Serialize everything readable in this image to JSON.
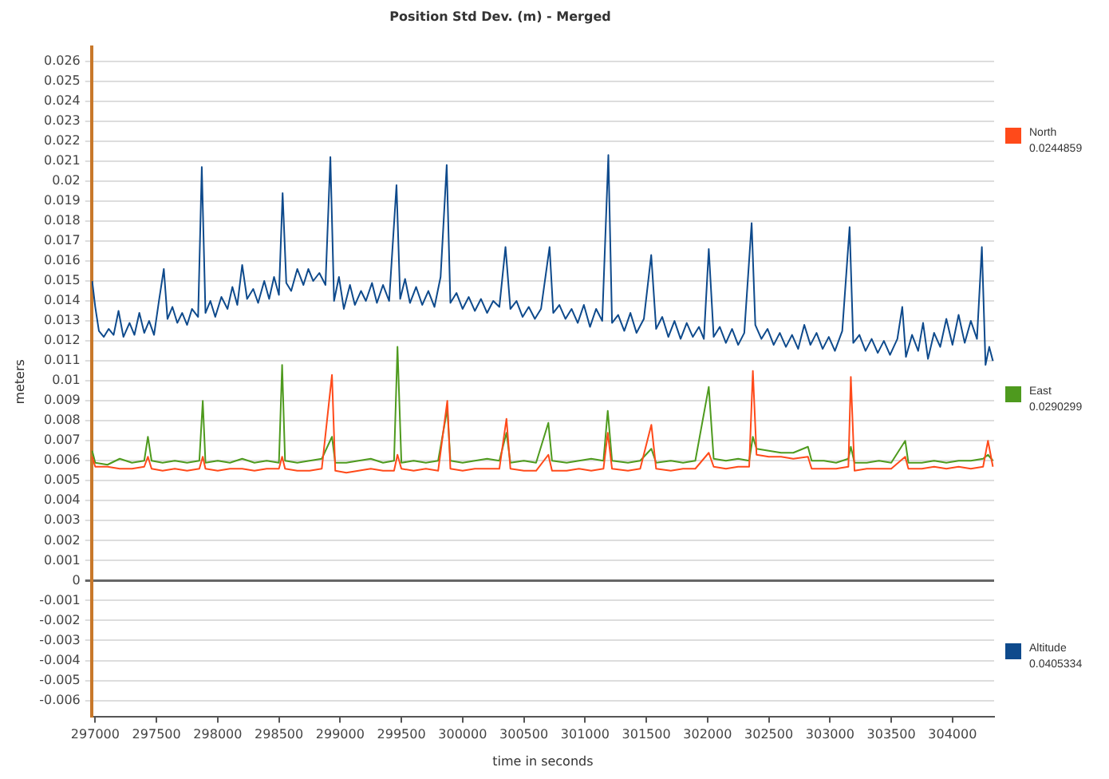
{
  "chart_data": {
    "type": "line",
    "title": "Position Std Dev. (m) - Merged",
    "xlabel": "time in seconds",
    "ylabel": "meters",
    "xlim": [
      296970,
      304340
    ],
    "xticks": [
      297000,
      297500,
      298000,
      298500,
      299000,
      299500,
      300000,
      300500,
      301000,
      301500,
      302000,
      302500,
      303000,
      303500,
      304000
    ],
    "ylim": [
      -0.0068,
      0.0267
    ],
    "yticks": [
      -0.006,
      -0.005,
      -0.004,
      -0.003,
      -0.002,
      -0.001,
      0,
      0.001,
      0.002,
      0.003,
      0.004,
      0.005,
      0.006,
      0.007,
      0.008,
      0.009,
      0.01,
      0.011,
      0.012,
      0.013,
      0.014,
      0.015,
      0.016,
      0.017,
      0.018,
      0.019,
      0.02,
      0.021,
      0.022,
      0.023,
      0.024,
      0.025,
      0.026
    ],
    "grid": "y",
    "legend": "right",
    "marker": "none",
    "line_style": "solid",
    "annotations": [
      "0.0244859",
      "0.0290299",
      "0.0405334"
    ],
    "series": [
      {
        "name": "North",
        "color": "#ff4a1a",
        "x": [
          296975,
          297000,
          297100,
          297200,
          297300,
          297400,
          297430,
          297460,
          297550,
          297650,
          297750,
          297850,
          297878,
          297900,
          298000,
          298100,
          298200,
          298300,
          298400,
          298500,
          298526,
          298550,
          298650,
          298750,
          298850,
          298933,
          298960,
          299050,
          299150,
          299250,
          299350,
          299440,
          299468,
          299500,
          299600,
          299700,
          299800,
          299875,
          299900,
          300000,
          300100,
          300200,
          300300,
          300358,
          300390,
          300500,
          300600,
          300700,
          300730,
          300850,
          300950,
          301050,
          301150,
          301185,
          301220,
          301350,
          301450,
          301541,
          301580,
          301700,
          301800,
          301900,
          302010,
          302050,
          302150,
          302250,
          302340,
          302370,
          302400,
          302500,
          302600,
          302700,
          302820,
          302850,
          302950,
          303050,
          303150,
          303170,
          303200,
          303300,
          303400,
          303500,
          303614,
          303640,
          303750,
          303850,
          303950,
          304050,
          304150,
          304250,
          304290,
          304330
        ],
        "values": [
          0.0062,
          0.0057,
          0.0057,
          0.0056,
          0.0056,
          0.0057,
          0.0062,
          0.0056,
          0.0055,
          0.0056,
          0.0055,
          0.0056,
          0.0062,
          0.0056,
          0.0055,
          0.0056,
          0.0056,
          0.0055,
          0.0056,
          0.0056,
          0.0062,
          0.0056,
          0.0055,
          0.0055,
          0.0056,
          0.0103,
          0.0055,
          0.0054,
          0.0055,
          0.0056,
          0.0055,
          0.0055,
          0.0063,
          0.0056,
          0.0055,
          0.0056,
          0.0055,
          0.009,
          0.0056,
          0.0055,
          0.0056,
          0.0056,
          0.0056,
          0.0081,
          0.0056,
          0.0055,
          0.0055,
          0.0063,
          0.0055,
          0.0055,
          0.0056,
          0.0055,
          0.0056,
          0.0074,
          0.0056,
          0.0055,
          0.0056,
          0.0078,
          0.0056,
          0.0055,
          0.0056,
          0.0056,
          0.0064,
          0.0057,
          0.0056,
          0.0057,
          0.0057,
          0.0105,
          0.0063,
          0.0062,
          0.0062,
          0.0061,
          0.0062,
          0.0056,
          0.0056,
          0.0056,
          0.0057,
          0.0102,
          0.0055,
          0.0056,
          0.0056,
          0.0056,
          0.0062,
          0.0056,
          0.0056,
          0.0057,
          0.0056,
          0.0057,
          0.0056,
          0.0057,
          0.007,
          0.0057
        ]
      },
      {
        "name": "East",
        "color": "#4e9a1e",
        "x": [
          296975,
          297000,
          297100,
          297200,
          297300,
          297400,
          297430,
          297460,
          297550,
          297650,
          297750,
          297850,
          297878,
          297900,
          298000,
          298100,
          298200,
          298300,
          298400,
          298500,
          298526,
          298550,
          298650,
          298750,
          298850,
          298933,
          298960,
          299050,
          299150,
          299250,
          299350,
          299440,
          299468,
          299500,
          299600,
          299700,
          299800,
          299875,
          299900,
          300000,
          300100,
          300200,
          300300,
          300358,
          300390,
          300500,
          300600,
          300700,
          300730,
          300850,
          300950,
          301050,
          301150,
          301185,
          301220,
          301350,
          301450,
          301541,
          301580,
          301700,
          301800,
          301900,
          302010,
          302050,
          302150,
          302250,
          302340,
          302370,
          302400,
          302500,
          302600,
          302700,
          302820,
          302850,
          302950,
          303050,
          303150,
          303170,
          303200,
          303300,
          303400,
          303500,
          303614,
          303640,
          303750,
          303850,
          303950,
          304050,
          304150,
          304250,
          304290,
          304330
        ],
        "values": [
          0.0065,
          0.0059,
          0.0058,
          0.0061,
          0.0059,
          0.006,
          0.0072,
          0.006,
          0.0059,
          0.006,
          0.0059,
          0.006,
          0.009,
          0.0059,
          0.006,
          0.0059,
          0.0061,
          0.0059,
          0.006,
          0.0059,
          0.0108,
          0.006,
          0.0059,
          0.006,
          0.0061,
          0.0072,
          0.0059,
          0.0059,
          0.006,
          0.0061,
          0.0059,
          0.006,
          0.0117,
          0.0059,
          0.006,
          0.0059,
          0.006,
          0.0086,
          0.006,
          0.0059,
          0.006,
          0.0061,
          0.006,
          0.0074,
          0.0059,
          0.006,
          0.0059,
          0.0079,
          0.006,
          0.0059,
          0.006,
          0.0061,
          0.006,
          0.0085,
          0.006,
          0.0059,
          0.006,
          0.0066,
          0.0059,
          0.006,
          0.0059,
          0.006,
          0.0097,
          0.0061,
          0.006,
          0.0061,
          0.006,
          0.0072,
          0.0066,
          0.0065,
          0.0064,
          0.0064,
          0.0067,
          0.006,
          0.006,
          0.0059,
          0.0061,
          0.0067,
          0.0059,
          0.0059,
          0.006,
          0.0059,
          0.007,
          0.0059,
          0.0059,
          0.006,
          0.0059,
          0.006,
          0.006,
          0.0061,
          0.0063,
          0.006
        ]
      },
      {
        "name": "Altitude",
        "color": "#0e4a8c",
        "x": [
          296975,
          297000,
          297030,
          297070,
          297110,
          297150,
          297190,
          297230,
          297280,
          297320,
          297360,
          297400,
          297440,
          297480,
          297520,
          297560,
          297590,
          297630,
          297670,
          297710,
          297750,
          297790,
          297840,
          297870,
          297900,
          297940,
          297980,
          298030,
          298080,
          298120,
          298160,
          298200,
          298240,
          298290,
          298330,
          298380,
          298420,
          298460,
          298500,
          298530,
          298560,
          298600,
          298650,
          298700,
          298740,
          298780,
          298830,
          298880,
          298920,
          298950,
          298990,
          299030,
          299080,
          299120,
          299170,
          299210,
          299260,
          299300,
          299350,
          299400,
          299460,
          299490,
          299530,
          299570,
          299620,
          299670,
          299720,
          299770,
          299820,
          299870,
          299900,
          299950,
          300000,
          300050,
          300100,
          300150,
          300200,
          300250,
          300300,
          300350,
          300390,
          300440,
          300490,
          300540,
          300590,
          300640,
          300710,
          300740,
          300790,
          300840,
          300890,
          300940,
          300990,
          301040,
          301090,
          301140,
          301190,
          301220,
          301270,
          301320,
          301370,
          301420,
          301480,
          301540,
          301580,
          301630,
          301680,
          301730,
          301780,
          301830,
          301880,
          301930,
          301970,
          302010,
          302050,
          302100,
          302150,
          302200,
          302250,
          302300,
          302360,
          302390,
          302440,
          302490,
          302540,
          302590,
          302640,
          302690,
          302740,
          302790,
          302840,
          302890,
          302940,
          302990,
          303040,
          303100,
          303160,
          303190,
          303240,
          303290,
          303340,
          303390,
          303440,
          303490,
          303550,
          303590,
          303620,
          303670,
          303720,
          303760,
          303800,
          303850,
          303900,
          303950,
          304000,
          304050,
          304100,
          304150,
          304200,
          304240,
          304270,
          304300,
          304330
        ],
        "values": [
          0.015,
          0.0137,
          0.0125,
          0.0122,
          0.0126,
          0.0123,
          0.0135,
          0.0122,
          0.0129,
          0.0123,
          0.0134,
          0.0124,
          0.013,
          0.0123,
          0.014,
          0.0156,
          0.0131,
          0.0137,
          0.0129,
          0.0134,
          0.0128,
          0.0136,
          0.0132,
          0.0207,
          0.0134,
          0.014,
          0.0132,
          0.0142,
          0.0136,
          0.0147,
          0.0138,
          0.0158,
          0.0141,
          0.0146,
          0.0139,
          0.015,
          0.0141,
          0.0152,
          0.0143,
          0.0194,
          0.0149,
          0.0145,
          0.0156,
          0.0148,
          0.0156,
          0.015,
          0.0154,
          0.0148,
          0.0212,
          0.014,
          0.0152,
          0.0136,
          0.0148,
          0.0138,
          0.0145,
          0.014,
          0.0149,
          0.0139,
          0.0148,
          0.014,
          0.0198,
          0.0141,
          0.0151,
          0.0139,
          0.0147,
          0.0138,
          0.0145,
          0.0137,
          0.0152,
          0.0208,
          0.0139,
          0.0144,
          0.0136,
          0.0142,
          0.0135,
          0.0141,
          0.0134,
          0.014,
          0.0137,
          0.0167,
          0.0136,
          0.014,
          0.0132,
          0.0137,
          0.0131,
          0.0136,
          0.0167,
          0.0134,
          0.0138,
          0.0131,
          0.0136,
          0.0129,
          0.0138,
          0.0127,
          0.0136,
          0.013,
          0.0213,
          0.0129,
          0.0133,
          0.0125,
          0.0134,
          0.0124,
          0.0131,
          0.0163,
          0.0126,
          0.0132,
          0.0122,
          0.013,
          0.0121,
          0.0129,
          0.0122,
          0.0127,
          0.0121,
          0.0166,
          0.0122,
          0.0127,
          0.0119,
          0.0126,
          0.0118,
          0.0124,
          0.0179,
          0.0128,
          0.0121,
          0.0126,
          0.0118,
          0.0124,
          0.0117,
          0.0123,
          0.0116,
          0.0128,
          0.0118,
          0.0124,
          0.0116,
          0.0122,
          0.0115,
          0.0125,
          0.0177,
          0.0119,
          0.0123,
          0.0115,
          0.0121,
          0.0114,
          0.012,
          0.0113,
          0.0121,
          0.0137,
          0.0112,
          0.0123,
          0.0115,
          0.0129,
          0.0111,
          0.0124,
          0.0117,
          0.0131,
          0.0118,
          0.0133,
          0.0119,
          0.013,
          0.0121,
          0.0167,
          0.0108,
          0.0117,
          0.011
        ]
      }
    ]
  }
}
